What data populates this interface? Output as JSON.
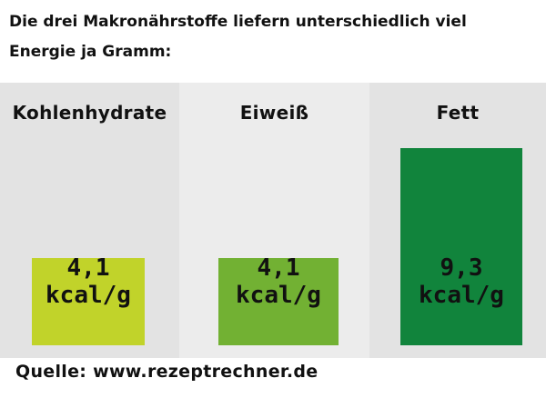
{
  "heading": {
    "line1": "Die drei Makronährstoffe liefern unterschiedlich viel",
    "line2": "Energie ja Gramm:"
  },
  "source": "Quelle: www.rezeptrechner.de",
  "chart_data": {
    "type": "bar",
    "categories": [
      "Kohlenhydrate",
      "Eiweiß",
      "Fett"
    ],
    "values": [
      4.1,
      4.1,
      9.3
    ],
    "value_labels": [
      "4,1",
      "4,1",
      "9,3"
    ],
    "unit": "kcal/g",
    "title": "",
    "xlabel": "",
    "ylabel": "",
    "colors": [
      "#c1d32a",
      "#72b133",
      "#11843c"
    ],
    "panel_colors": [
      "#e3e3e3",
      "#ececec",
      "#e3e3e3"
    ]
  }
}
